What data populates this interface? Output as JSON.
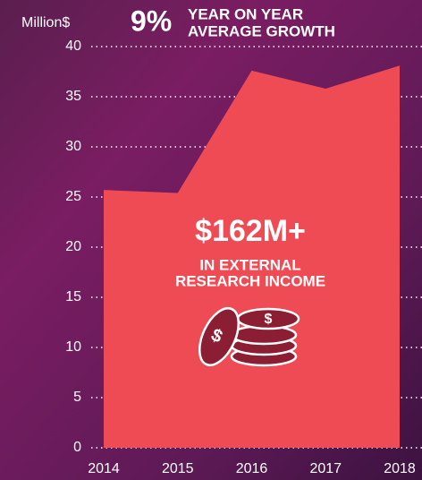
{
  "chart_data": {
    "type": "area",
    "y_label": "Million$",
    "headline": {
      "value": "9%",
      "lines": [
        "YEAR ON YEAR",
        "AVERAGE GROWTH"
      ]
    },
    "annotation": {
      "value": "$162M+",
      "lines": [
        "IN EXTERNAL",
        "RESEARCH INCOME"
      ]
    },
    "categories": [
      "2014",
      "2015",
      "2016",
      "2017",
      "2018"
    ],
    "values": [
      25.7,
      25.4,
      37.6,
      35.8,
      38.1
    ],
    "color": "#ef4b55",
    "ylim": [
      0,
      40
    ],
    "yticks": [
      0,
      5,
      10,
      15,
      20,
      25,
      30,
      35,
      40
    ],
    "grid": true
  }
}
